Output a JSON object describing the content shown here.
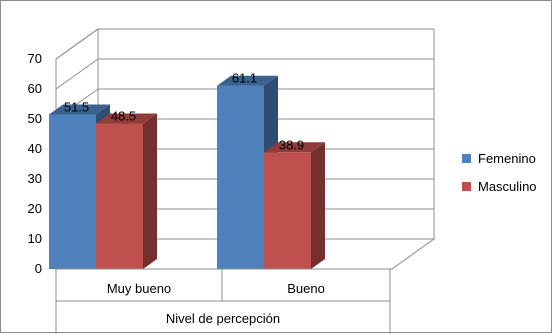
{
  "chart_data": {
    "type": "bar",
    "title": "",
    "ylabel": "",
    "xlabel": "Nivel de percepción",
    "categories": [
      "Muy bueno",
      "Bueno"
    ],
    "series": [
      {
        "name": "Femenino",
        "values": [
          51.5,
          61.1
        ],
        "color": "#4F81BD",
        "value_labels": [
          "51.5",
          "61.1"
        ]
      },
      {
        "name": "Masculino",
        "values": [
          48.5,
          38.9
        ],
        "color": "#C0504D",
        "value_labels": [
          "48.5",
          "38.9"
        ]
      }
    ],
    "ylim": [
      0,
      70
    ],
    "yticks": [
      "0",
      "10",
      "20",
      "30",
      "40",
      "50",
      "60",
      "70"
    ],
    "grid": true,
    "legend_position": "right",
    "style": "3d-clustered-column"
  }
}
